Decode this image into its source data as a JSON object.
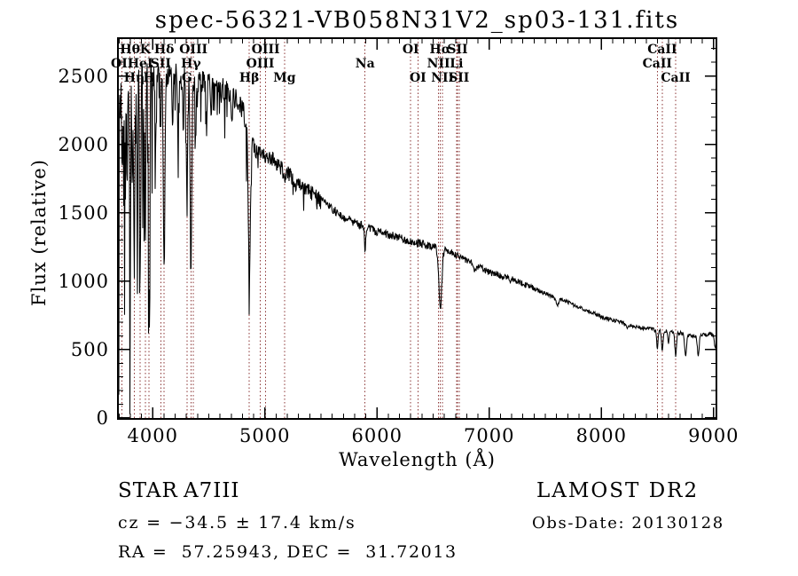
{
  "title": "spec-56321-VB058N31V2_sp03-131.fits",
  "colors": {
    "spectrum": "#000000",
    "marker_line": "#8b3535",
    "text": "#000000",
    "background": "#ffffff"
  },
  "chart_data": {
    "type": "line",
    "title": "spec-56321-VB058N31V2_sp03-131.fits",
    "xlabel": "Wavelength (Å)",
    "ylabel": "Flux (relative)",
    "xlim": [
      3690,
      9025
    ],
    "ylim": [
      0,
      2776
    ],
    "x_major_ticks": [
      4000,
      5000,
      6000,
      7000,
      8000,
      9000
    ],
    "y_major_ticks": [
      0,
      500,
      1000,
      1500,
      2000,
      2500
    ],
    "x_minor_step": 100,
    "y_minor_step": 100,
    "grid": false,
    "legend": null,
    "series": [
      {
        "name": "flux",
        "style": "noisy-line",
        "color": "#000000"
      }
    ],
    "continuum_points": [
      [
        3690,
        2280
      ],
      [
        3800,
        2400
      ],
      [
        3950,
        2500
      ],
      [
        4150,
        2510
      ],
      [
        4350,
        2470
      ],
      [
        4550,
        2440
      ],
      [
        4700,
        2360
      ],
      [
        4800,
        2260
      ],
      [
        4870,
        2060
      ],
      [
        4910,
        1960
      ],
      [
        5050,
        1905
      ],
      [
        5200,
        1790
      ],
      [
        5450,
        1620
      ],
      [
        5700,
        1470
      ],
      [
        5900,
        1390
      ],
      [
        6100,
        1340
      ],
      [
        6350,
        1280
      ],
      [
        6560,
        1245
      ],
      [
        6700,
        1195
      ],
      [
        7000,
        1065
      ],
      [
        7200,
        1020
      ],
      [
        7450,
        925
      ],
      [
        7700,
        845
      ],
      [
        8000,
        740
      ],
      [
        8300,
        668
      ],
      [
        8500,
        640
      ],
      [
        8650,
        633
      ],
      [
        8800,
        600
      ],
      [
        8950,
        612
      ],
      [
        9025,
        605
      ]
    ],
    "absorption_features": [
      {
        "center": 3727,
        "depth": 250,
        "sigma": 4
      },
      {
        "center": 3750,
        "depth": 650,
        "sigma": 4
      },
      {
        "center": 3771,
        "depth": 750,
        "sigma": 4
      },
      {
        "center": 3798,
        "depth": 1100,
        "sigma": 5
      },
      {
        "center": 3819,
        "depth": 520,
        "sigma": 4
      },
      {
        "center": 3836,
        "depth": 1280,
        "sigma": 5
      },
      {
        "center": 3860,
        "depth": 520,
        "sigma": 4
      },
      {
        "center": 3889,
        "depth": 1400,
        "sigma": 5
      },
      {
        "center": 3913,
        "depth": 400,
        "sigma": 3
      },
      {
        "center": 3934,
        "depth": 1150,
        "sigma": 5
      },
      {
        "center": 3968,
        "depth": 1520,
        "sigma": 6
      },
      {
        "center": 4026,
        "depth": 480,
        "sigma": 4
      },
      {
        "center": 4072,
        "depth": 380,
        "sigma": 4
      },
      {
        "center": 4102,
        "depth": 1400,
        "sigma": 7
      },
      {
        "center": 4178,
        "depth": 420,
        "sigma": 4
      },
      {
        "center": 4226,
        "depth": 480,
        "sigma": 4
      },
      {
        "center": 4271,
        "depth": 350,
        "sigma": 4
      },
      {
        "center": 4305,
        "depth": 820,
        "sigma": 6
      },
      {
        "center": 4341,
        "depth": 1420,
        "sigma": 7
      },
      {
        "center": 4383,
        "depth": 480,
        "sigma": 4
      },
      {
        "center": 4481,
        "depth": 380,
        "sigma": 4
      },
      {
        "center": 4520,
        "depth": 250,
        "sigma": 5
      },
      {
        "center": 4703,
        "depth": 250,
        "sigma": 5
      },
      {
        "center": 4861,
        "depth": 1080,
        "sigma": 9
      },
      {
        "center": 5175,
        "depth": 80,
        "sigma": 11
      },
      {
        "center": 5270,
        "depth": 60,
        "sigma": 8
      },
      {
        "center": 5893,
        "depth": 175,
        "sigma": 5
      },
      {
        "center": 6563,
        "depth": 450,
        "sigma": 13
      },
      {
        "center": 6870,
        "depth": 45,
        "sigma": 10
      },
      {
        "center": 7186,
        "depth": 30,
        "sigma": 10
      },
      {
        "center": 7605,
        "depth": 50,
        "sigma": 12
      },
      {
        "center": 8230,
        "depth": 40,
        "sigma": 8
      },
      {
        "center": 8498,
        "depth": 130,
        "sigma": 6
      },
      {
        "center": 8542,
        "depth": 140,
        "sigma": 7
      },
      {
        "center": 8598,
        "depth": 80,
        "sigma": 5
      },
      {
        "center": 8662,
        "depth": 170,
        "sigma": 8
      },
      {
        "center": 8750,
        "depth": 160,
        "sigma": 8
      },
      {
        "center": 8863,
        "depth": 145,
        "sigma": 8
      },
      {
        "center": 9015,
        "depth": 90,
        "sigma": 8
      }
    ],
    "noise_bands": [
      {
        "range": [
          3690,
          4000
        ],
        "amplitude": 170,
        "spike_prob": 0.3,
        "spike_max": 1450
      },
      {
        "range": [
          4000,
          4400
        ],
        "amplitude": 95,
        "spike_prob": 0.18,
        "spike_max": 1000
      },
      {
        "range": [
          4400,
          4880
        ],
        "amplitude": 85,
        "spike_prob": 0.12,
        "spike_max": 500
      },
      {
        "range": [
          4880,
          5500
        ],
        "amplitude": 55,
        "spike_prob": 0.06,
        "spike_max": 200
      },
      {
        "range": [
          5500,
          6600
        ],
        "amplitude": 32,
        "spike_prob": 0,
        "spike_max": 0
      },
      {
        "range": [
          6600,
          7400
        ],
        "amplitude": 24,
        "spike_prob": 0,
        "spike_max": 0
      },
      {
        "range": [
          7400,
          9025
        ],
        "amplitude": 14,
        "spike_prob": 0,
        "spike_max": 0
      }
    ],
    "edge_dropouts": [
      {
        "wavelength": 3693,
        "flux": 170
      },
      {
        "wavelength": 9022,
        "flux": 140
      }
    ],
    "marked_lines": [
      {
        "label": "Hθ",
        "wavelength": 3798,
        "row": 1
      },
      {
        "label": "K",
        "wavelength": 3934,
        "row": 1
      },
      {
        "label": "Hδ",
        "wavelength": 4102,
        "row": 1
      },
      {
        "label": "OIII",
        "wavelength": 4363,
        "row": 1
      },
      {
        "label": "OIII",
        "wavelength": 5007,
        "row": 1
      },
      {
        "label": "OI",
        "wavelength": 6300,
        "row": 1
      },
      {
        "label": "Hα",
        "wavelength": 6563,
        "row": 1
      },
      {
        "label": "SII",
        "wavelength": 6717,
        "row": 1
      },
      {
        "label": "CaII",
        "wavelength": 8542,
        "row": 1
      },
      {
        "label": "OII",
        "wavelength": 3727,
        "row": 2
      },
      {
        "label": "HeI",
        "wavelength": 3889,
        "row": 2
      },
      {
        "label": "SII",
        "wavelength": 4072,
        "row": 2
      },
      {
        "label": "Hγ",
        "wavelength": 4341,
        "row": 2
      },
      {
        "label": "OIII",
        "wavelength": 4959,
        "row": 2
      },
      {
        "label": "Na",
        "wavelength": 5893,
        "row": 2
      },
      {
        "label": "NII",
        "wavelength": 6548,
        "row": 2
      },
      {
        "label": "Li",
        "wavelength": 6708,
        "row": 2
      },
      {
        "label": "CaII",
        "wavelength": 8498,
        "row": 2
      },
      {
        "label": "Hη",
        "wavelength": 3836,
        "row": 3
      },
      {
        "label": "H",
        "wavelength": 3968,
        "row": 3
      },
      {
        "label": "G",
        "wavelength": 4305,
        "row": 3
      },
      {
        "label": "Hβ",
        "wavelength": 4861,
        "row": 3
      },
      {
        "label": "Mg",
        "wavelength": 5175,
        "row": 3
      },
      {
        "label": "OI",
        "wavelength": 6364,
        "row": 3
      },
      {
        "label": "NII",
        "wavelength": 6584,
        "row": 3
      },
      {
        "label": "SII",
        "wavelength": 6731,
        "row": 3
      },
      {
        "label": "CaII",
        "wavelength": 8662,
        "row": 3
      }
    ]
  },
  "annotations": {
    "object_class": "STAR",
    "subclass": "A7III",
    "survey": "LAMOST DR2",
    "cz": "cz = −34.5 ± 17.4 km/s",
    "obs_date": "Obs-Date: 20130128",
    "ra_dec": "RA =  57.25943, DEC =  31.72013"
  }
}
